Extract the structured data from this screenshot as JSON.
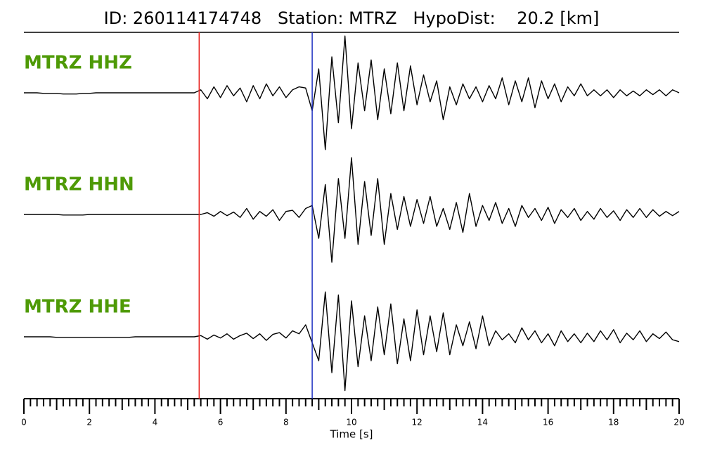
{
  "chart_data": {
    "type": "line",
    "title": "ID: 260114174748   Station: MTRZ   HypoDist:    20.2 [km]",
    "xlabel": "Time [s]",
    "xlim": [
      0,
      20
    ],
    "xticks": [
      0,
      2,
      4,
      6,
      8,
      10,
      12,
      14,
      16,
      18,
      20
    ],
    "xminorticks": [
      0.2,
      0.4,
      0.6,
      0.8,
      1,
      1.2,
      1.4,
      1.6,
      1.8,
      2.2,
      2.4,
      2.6,
      2.8,
      3,
      3.2,
      3.4,
      3.6,
      3.8,
      4.2,
      4.4,
      4.6,
      4.8,
      5,
      5.2,
      5.4,
      5.6,
      5.8,
      6.2,
      6.4,
      6.6,
      6.8,
      7,
      7.2,
      7.4,
      7.6,
      7.8,
      8.2,
      8.4,
      8.6,
      8.8,
      9,
      9.2,
      9.4,
      9.6,
      9.8,
      10.2,
      10.4,
      10.6,
      10.8,
      11,
      11.2,
      11.4,
      11.6,
      11.8,
      12.2,
      12.4,
      12.6,
      12.8,
      13,
      13.2,
      13.4,
      13.6,
      13.8,
      14.2,
      14.4,
      14.6,
      14.8,
      15,
      15.2,
      15.4,
      15.6,
      15.8,
      16.2,
      16.4,
      16.6,
      16.8,
      17,
      17.2,
      17.4,
      17.6,
      17.8,
      18.2,
      18.4,
      18.6,
      18.8,
      19,
      19.2,
      19.4,
      19.6,
      19.8
    ],
    "ylim": [
      -1,
      1
    ],
    "line_color": "#000000",
    "label_color": "#4e9a06",
    "markers": [
      {
        "x": 5.35,
        "color": "#e8201c"
      },
      {
        "x": 8.8,
        "color": "#1c2ec0"
      }
    ],
    "x": [
      0,
      0.2,
      0.4,
      0.6,
      0.8,
      1,
      1.2,
      1.4,
      1.6,
      1.8,
      2,
      2.2,
      2.4,
      2.6,
      2.8,
      3,
      3.2,
      3.4,
      3.6,
      3.8,
      4,
      4.2,
      4.4,
      4.6,
      4.8,
      5,
      5.2,
      5.4,
      5.6,
      5.8,
      6,
      6.2,
      6.4,
      6.6,
      6.8,
      7,
      7.2,
      7.4,
      7.6,
      7.8,
      8,
      8.2,
      8.4,
      8.6,
      8.8,
      9,
      9.2,
      9.4,
      9.6,
      9.8,
      10,
      10.2,
      10.4,
      10.6,
      10.8,
      11,
      11.2,
      11.4,
      11.6,
      11.8,
      12,
      12.2,
      12.4,
      12.6,
      12.8,
      13,
      13.2,
      13.4,
      13.6,
      13.8,
      14,
      14.2,
      14.4,
      14.6,
      14.8,
      15,
      15.2,
      15.4,
      15.6,
      15.8,
      16,
      16.2,
      16.4,
      16.6,
      16.8,
      17,
      17.2,
      17.4,
      17.6,
      17.8,
      18,
      18.2,
      18.4,
      18.6,
      18.8,
      19,
      19.2,
      19.4,
      19.6,
      19.8,
      20
    ],
    "series": [
      {
        "name": "MTRZ HHZ",
        "values": [
          0,
          0,
          0,
          -0.01,
          -0.01,
          -0.01,
          -0.02,
          -0.02,
          -0.02,
          -0.01,
          -0.01,
          0,
          0,
          0,
          0,
          0,
          0,
          0,
          0,
          0,
          0,
          0,
          0,
          0,
          0,
          0,
          0,
          0.05,
          -0.1,
          0.1,
          -0.08,
          0.12,
          -0.05,
          0.08,
          -0.15,
          0.12,
          -0.1,
          0.15,
          -0.05,
          0.1,
          -0.08,
          0.05,
          0.1,
          0.08,
          -0.3,
          0.4,
          -0.95,
          0.6,
          -0.5,
          0.95,
          -0.6,
          0.5,
          -0.3,
          0.55,
          -0.45,
          0.4,
          -0.35,
          0.5,
          -0.3,
          0.45,
          -0.2,
          0.3,
          -0.15,
          0.2,
          -0.45,
          0.1,
          -0.2,
          0.15,
          -0.1,
          0.1,
          -0.15,
          0.12,
          -0.1,
          0.25,
          -0.2,
          0.2,
          -0.15,
          0.25,
          -0.25,
          0.2,
          -0.1,
          0.15,
          -0.15,
          0.1,
          -0.05,
          0.15,
          -0.05,
          0.05,
          -0.05,
          0.05,
          -0.08,
          0.05,
          -0.05,
          0.03,
          -0.05,
          0.05,
          -0.03,
          0.05,
          -0.05,
          0.05,
          0
        ]
      },
      {
        "name": "MTRZ HHN",
        "values": [
          0,
          0,
          0,
          0,
          0,
          0,
          -0.01,
          -0.01,
          -0.01,
          -0.01,
          0,
          0,
          0,
          0,
          0,
          0,
          0,
          0,
          0,
          0,
          0,
          0,
          0,
          0,
          0,
          0,
          0,
          0,
          0.03,
          -0.03,
          0.05,
          -0.02,
          0.04,
          -0.05,
          0.1,
          -0.08,
          0.05,
          -0.03,
          0.08,
          -0.1,
          0.05,
          0.07,
          -0.05,
          0.1,
          0.15,
          -0.4,
          0.5,
          -0.8,
          0.6,
          -0.4,
          0.95,
          -0.5,
          0.55,
          -0.35,
          0.6,
          -0.5,
          0.35,
          -0.25,
          0.3,
          -0.2,
          0.25,
          -0.15,
          0.3,
          -0.2,
          0.1,
          -0.25,
          0.2,
          -0.3,
          0.35,
          -0.2,
          0.15,
          -0.1,
          0.2,
          -0.15,
          0.1,
          -0.2,
          0.15,
          -0.05,
          0.1,
          -0.1,
          0.12,
          -0.15,
          0.08,
          -0.05,
          0.1,
          -0.1,
          0.05,
          -0.08,
          0.1,
          -0.05,
          0.06,
          -0.1,
          0.08,
          -0.05,
          0.1,
          -0.05,
          0.08,
          -0.03,
          0.05,
          -0.02,
          0.05
        ]
      },
      {
        "name": "MTRZ HHE",
        "values": [
          0,
          0,
          0,
          0,
          0,
          -0.01,
          -0.01,
          -0.01,
          -0.01,
          -0.01,
          -0.01,
          -0.01,
          -0.01,
          -0.01,
          -0.01,
          -0.01,
          -0.01,
          0,
          0,
          0,
          0,
          0,
          0,
          0,
          0,
          0,
          0,
          0.02,
          -0.04,
          0.03,
          -0.02,
          0.05,
          -0.04,
          0.02,
          0.06,
          -0.03,
          0.05,
          -0.06,
          0.04,
          0.07,
          -0.02,
          0.1,
          0.05,
          0.2,
          -0.1,
          -0.4,
          0.75,
          -0.6,
          0.7,
          -0.9,
          0.6,
          -0.5,
          0.35,
          -0.4,
          0.5,
          -0.3,
          0.55,
          -0.45,
          0.3,
          -0.4,
          0.45,
          -0.3,
          0.35,
          -0.25,
          0.4,
          -0.3,
          0.2,
          -0.15,
          0.25,
          -0.2,
          0.35,
          -0.15,
          0.1,
          -0.05,
          0.05,
          -0.1,
          0.15,
          -0.05,
          0.1,
          -0.1,
          0.05,
          -0.15,
          0.1,
          -0.08,
          0.05,
          -0.1,
          0.06,
          -0.08,
          0.1,
          -0.05,
          0.12,
          -0.1,
          0.06,
          -0.05,
          0.1,
          -0.08,
          0.05,
          -0.03,
          0.08,
          -0.05,
          -0.08
        ]
      }
    ]
  }
}
